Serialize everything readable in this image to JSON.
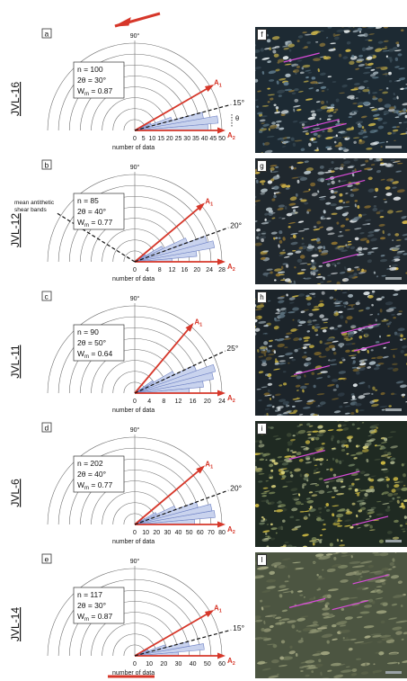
{
  "colors": {
    "red": "#d6372a",
    "blue_fill": "#c9d3ee",
    "blue_stroke": "#6f82c4",
    "grid": "#6e6e6e"
  },
  "top_arrow": "shear-sense-arrow-sinistral",
  "panels": [
    {
      "letter": "a",
      "sample": "JVL-16",
      "n": "n = 100",
      "two_theta": "2θ = 30°",
      "wm": "Wm = 0.87",
      "theta_label": "15°",
      "theta_symbol": "θ",
      "a1": "A1",
      "a2": "A2",
      "ticks": [
        "0",
        "5",
        "10",
        "15",
        "20",
        "25",
        "30",
        "35",
        "40",
        "45",
        "50"
      ],
      "xlabel": "number of data",
      "top": "90°",
      "a1_angle": 30,
      "mean_angle": 15,
      "wedges": [
        {
          "from": 0,
          "to": 5,
          "count": 42
        },
        {
          "from": 5,
          "to": 10,
          "count": 48
        },
        {
          "from": 10,
          "to": 15,
          "count": 40
        },
        {
          "from": 15,
          "to": 20,
          "count": 22
        },
        {
          "from": 20,
          "to": 25,
          "count": 10
        },
        {
          "from": 25,
          "to": 30,
          "count": 4
        }
      ],
      "max": 50
    },
    {
      "letter": "b",
      "sample": "JVL-12",
      "n": "n = 85",
      "two_theta": "2θ = 40°",
      "wm": "Wm = 0.77",
      "theta_label": "20°",
      "a1": "A1",
      "a2": "A2",
      "ticks": [
        "0",
        "4",
        "8",
        "12",
        "16",
        "20",
        "24",
        "28"
      ],
      "xlabel": "number of data",
      "top": "90°",
      "annotation": "mean antithetic\nshear bands",
      "a1_angle": 40,
      "mean_angle": 20,
      "antithetic_angle": 148,
      "wedges": [
        {
          "from": 0,
          "to": 5,
          "count": 12
        },
        {
          "from": 5,
          "to": 10,
          "count": 20
        },
        {
          "from": 10,
          "to": 15,
          "count": 26
        },
        {
          "from": 15,
          "to": 20,
          "count": 24
        },
        {
          "from": 20,
          "to": 25,
          "count": 18
        },
        {
          "from": 25,
          "to": 30,
          "count": 10
        },
        {
          "from": 30,
          "to": 35,
          "count": 4
        }
      ],
      "max": 28
    },
    {
      "letter": "c",
      "sample": "JVL-11",
      "n": "n = 90",
      "two_theta": "2θ = 50°",
      "wm": "Wm = 0.64",
      "theta_label": "25°",
      "a1": "A1",
      "a2": "A2",
      "ticks": [
        "0",
        "4",
        "8",
        "12",
        "16",
        "20",
        "24"
      ],
      "xlabel": "number of data",
      "top": "90°",
      "a1_angle": 50,
      "mean_angle": 25,
      "wedges": [
        {
          "from": 0,
          "to": 5,
          "count": 15
        },
        {
          "from": 5,
          "to": 10,
          "count": 19
        },
        {
          "from": 10,
          "to": 15,
          "count": 22
        },
        {
          "from": 15,
          "to": 20,
          "count": 23
        },
        {
          "from": 20,
          "to": 25,
          "count": 18
        },
        {
          "from": 25,
          "to": 30,
          "count": 12
        },
        {
          "from": 30,
          "to": 35,
          "count": 6
        }
      ],
      "max": 24
    },
    {
      "letter": "d",
      "sample": "JVL-6",
      "n": "n = 202",
      "two_theta": "2θ = 40°",
      "wm": "Wm = 0.77",
      "theta_label": "20°",
      "a1": "A1",
      "a2": "A2",
      "ticks": [
        "0",
        "10",
        "20",
        "30",
        "40",
        "50",
        "60",
        "70",
        "80"
      ],
      "xlabel": "number of data",
      "top": "90°",
      "a1_angle": 40,
      "mean_angle": 20,
      "wedges": [
        {
          "from": 0,
          "to": 5,
          "count": 55
        },
        {
          "from": 5,
          "to": 10,
          "count": 74
        },
        {
          "from": 10,
          "to": 15,
          "count": 72
        },
        {
          "from": 15,
          "to": 20,
          "count": 60
        },
        {
          "from": 20,
          "to": 25,
          "count": 40
        },
        {
          "from": 25,
          "to": 30,
          "count": 22
        },
        {
          "from": 30,
          "to": 35,
          "count": 8
        }
      ],
      "max": 80
    },
    {
      "letter": "e",
      "sample": "JVL-14",
      "n": "n = 117",
      "two_theta": "2θ = 30°",
      "wm": "Wm = 0.87",
      "theta_label": "15°",
      "a1": "A1",
      "a2": "A2",
      "ticks": [
        "0",
        "10",
        "20",
        "30",
        "40",
        "50",
        "60"
      ],
      "xlabel": "number of data",
      "top": "90°",
      "a1_angle": 30,
      "mean_angle": 15,
      "wedges": [
        {
          "from": 0,
          "to": 5,
          "count": 30
        },
        {
          "from": 5,
          "to": 10,
          "count": 48
        },
        {
          "from": 10,
          "to": 15,
          "count": 38
        },
        {
          "from": 15,
          "to": 20,
          "count": 22
        },
        {
          "from": 20,
          "to": 25,
          "count": 10
        }
      ],
      "max": 60
    }
  ],
  "photos": [
    {
      "letter": "f",
      "tone": "a"
    },
    {
      "letter": "g",
      "tone": "b"
    },
    {
      "letter": "h",
      "tone": "c"
    },
    {
      "letter": "i",
      "tone": "d"
    },
    {
      "letter": "l",
      "tone": "e"
    }
  ]
}
